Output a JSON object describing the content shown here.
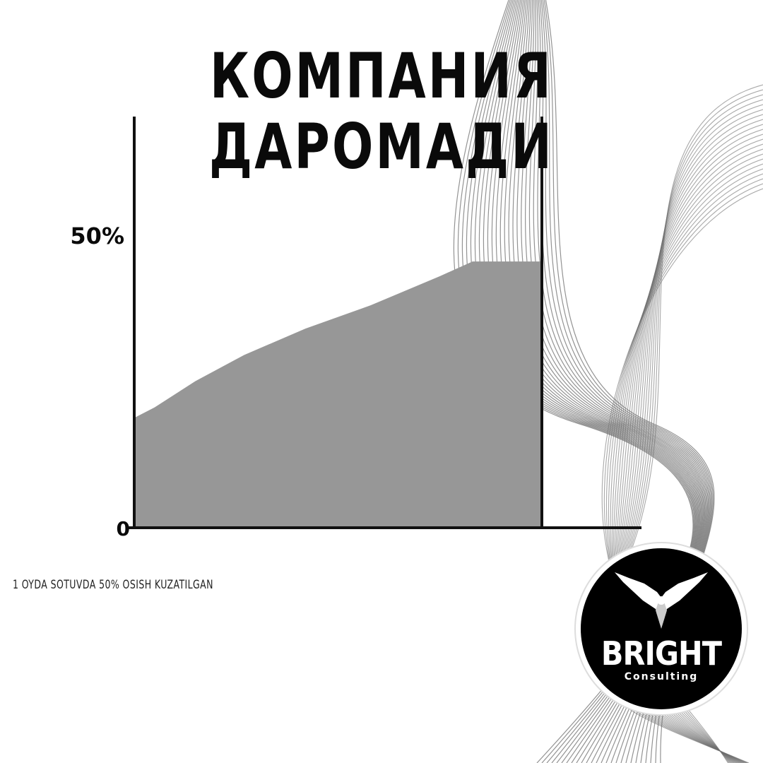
{
  "title": "КОМПАНИЯ ДАРОМАДИ",
  "caption": "1 OYDA SOTUVDA 50% OSISH KUZATILGAN",
  "colors": {
    "area_fill": "#979797",
    "axis": "#111111",
    "wave_lines": "#6f6f6f",
    "logo_bg": "#000000"
  },
  "logo": {
    "brand": "BRIGHT",
    "sub": "Consulting",
    "icon": "eagle-wings-icon"
  },
  "chart_data": {
    "type": "area",
    "title": "КОМПАНИЯ ДАРОМАДИ",
    "xlabel": "",
    "ylabel": "",
    "ylim": [
      0,
      50
    ],
    "y_ticks": [
      {
        "value": 0,
        "label": "0"
      },
      {
        "value": 50,
        "label": "50%"
      }
    ],
    "x": [
      0,
      0.05,
      0.15,
      0.27,
      0.42,
      0.58,
      0.75,
      0.83,
      1.0
    ],
    "series": [
      {
        "values": [
          18.7,
          20.5,
          25.0,
          29.5,
          34.0,
          38.0,
          43.0,
          45.5,
          45.5
        ]
      }
    ],
    "grid": false,
    "legend": "none"
  }
}
